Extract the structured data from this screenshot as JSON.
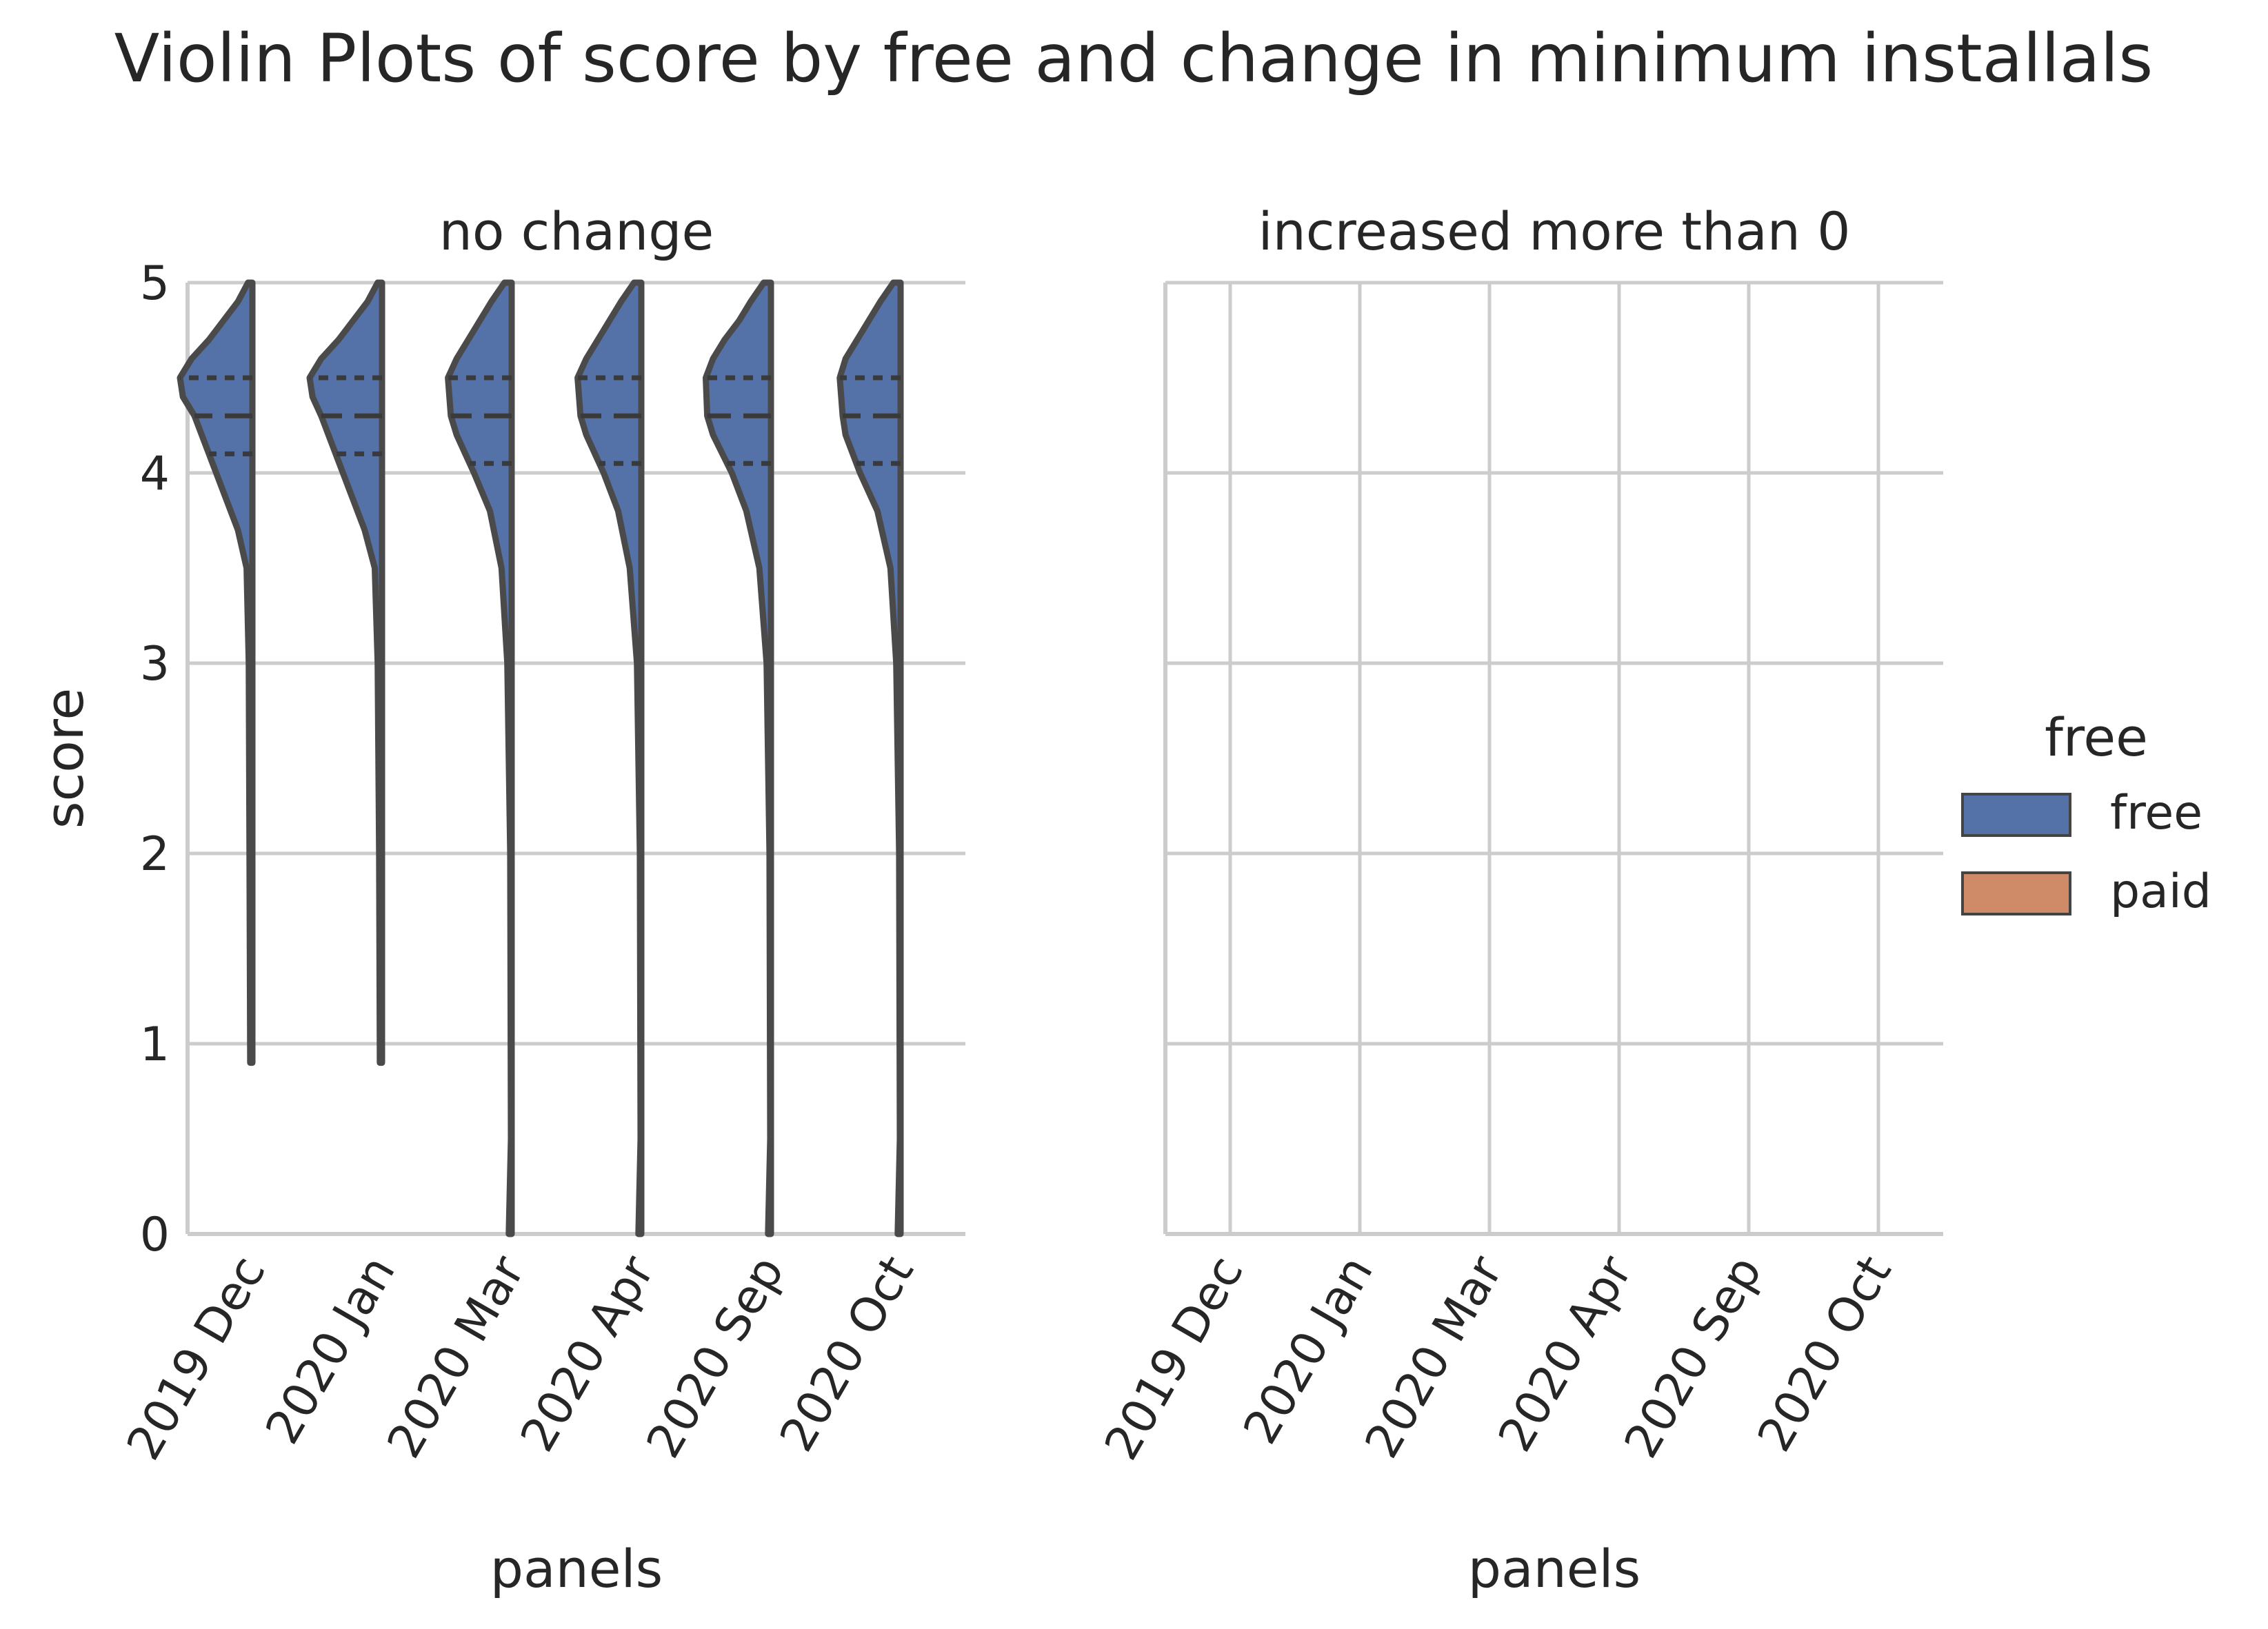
{
  "chart_data": {
    "type": "violin",
    "title": "Violin Plots of score by free and change in minimum installals",
    "split": true,
    "ylim": [
      0,
      5
    ],
    "yticks": [
      0,
      1,
      2,
      3,
      4,
      5
    ],
    "categories": [
      "2019 Dec",
      "2020 Jan",
      "2020 Mar",
      "2020 Apr",
      "2020 Sep",
      "2020 Oct"
    ],
    "grid": true,
    "legend": {
      "title": "free",
      "placement": "right",
      "entries": [
        {
          "label": "free",
          "color": "#5471a8"
        },
        {
          "label": "paid",
          "color": "#cf8a68"
        }
      ]
    },
    "facets": [
      {
        "title": "no change",
        "xlabel": "panels",
        "ylabel": "score",
        "series": [
          {
            "name": "free",
            "color": "#5471a8",
            "violins": [
              {
                "category": "2019 Dec",
                "min": 0.9,
                "max": 5.0,
                "q1": 4.1,
                "median": 4.3,
                "q3": 4.5,
                "profile": [
                  [
                    0.9,
                    0.015
                  ],
                  [
                    2.0,
                    0.02
                  ],
                  [
                    3.0,
                    0.025
                  ],
                  [
                    3.5,
                    0.04
                  ],
                  [
                    3.7,
                    0.1
                  ],
                  [
                    3.9,
                    0.2
                  ],
                  [
                    4.1,
                    0.3
                  ],
                  [
                    4.3,
                    0.4
                  ],
                  [
                    4.4,
                    0.48
                  ],
                  [
                    4.5,
                    0.5
                  ],
                  [
                    4.6,
                    0.42
                  ],
                  [
                    4.7,
                    0.3
                  ],
                  [
                    4.8,
                    0.2
                  ],
                  [
                    4.9,
                    0.1
                  ],
                  [
                    5.0,
                    0.03
                  ]
                ]
              },
              {
                "category": "2020 Jan",
                "min": 0.9,
                "max": 5.0,
                "q1": 4.1,
                "median": 4.3,
                "q3": 4.5,
                "profile": [
                  [
                    0.9,
                    0.015
                  ],
                  [
                    2.0,
                    0.02
                  ],
                  [
                    3.0,
                    0.03
                  ],
                  [
                    3.5,
                    0.05
                  ],
                  [
                    3.7,
                    0.12
                  ],
                  [
                    3.9,
                    0.22
                  ],
                  [
                    4.1,
                    0.32
                  ],
                  [
                    4.3,
                    0.42
                  ],
                  [
                    4.4,
                    0.48
                  ],
                  [
                    4.5,
                    0.5
                  ],
                  [
                    4.6,
                    0.42
                  ],
                  [
                    4.7,
                    0.3
                  ],
                  [
                    4.8,
                    0.2
                  ],
                  [
                    4.9,
                    0.1
                  ],
                  [
                    5.0,
                    0.03
                  ]
                ]
              },
              {
                "category": "2020 Mar",
                "min": 0.0,
                "max": 5.0,
                "q1": 4.05,
                "median": 4.3,
                "q3": 4.5,
                "profile": [
                  [
                    0.0,
                    0.02
                  ],
                  [
                    0.5,
                    0.005
                  ],
                  [
                    2.0,
                    0.01
                  ],
                  [
                    3.0,
                    0.03
                  ],
                  [
                    3.5,
                    0.07
                  ],
                  [
                    3.8,
                    0.15
                  ],
                  [
                    4.0,
                    0.26
                  ],
                  [
                    4.2,
                    0.38
                  ],
                  [
                    4.3,
                    0.42
                  ],
                  [
                    4.5,
                    0.44
                  ],
                  [
                    4.6,
                    0.38
                  ],
                  [
                    4.7,
                    0.3
                  ],
                  [
                    4.8,
                    0.22
                  ],
                  [
                    4.9,
                    0.14
                  ],
                  [
                    5.0,
                    0.05
                  ]
                ]
              },
              {
                "category": "2020 Apr",
                "min": 0.0,
                "max": 5.0,
                "q1": 4.05,
                "median": 4.3,
                "q3": 4.5,
                "profile": [
                  [
                    0.0,
                    0.02
                  ],
                  [
                    0.5,
                    0.005
                  ],
                  [
                    2.0,
                    0.01
                  ],
                  [
                    3.0,
                    0.03
                  ],
                  [
                    3.5,
                    0.08
                  ],
                  [
                    3.8,
                    0.16
                  ],
                  [
                    4.0,
                    0.26
                  ],
                  [
                    4.2,
                    0.38
                  ],
                  [
                    4.3,
                    0.42
                  ],
                  [
                    4.5,
                    0.44
                  ],
                  [
                    4.6,
                    0.38
                  ],
                  [
                    4.7,
                    0.3
                  ],
                  [
                    4.8,
                    0.22
                  ],
                  [
                    4.9,
                    0.14
                  ],
                  [
                    5.0,
                    0.05
                  ]
                ]
              },
              {
                "category": "2020 Sep",
                "min": 0.0,
                "max": 5.0,
                "q1": 4.05,
                "median": 4.3,
                "q3": 4.5,
                "profile": [
                  [
                    0.0,
                    0.02
                  ],
                  [
                    0.5,
                    0.005
                  ],
                  [
                    2.0,
                    0.01
                  ],
                  [
                    3.0,
                    0.03
                  ],
                  [
                    3.5,
                    0.08
                  ],
                  [
                    3.8,
                    0.17
                  ],
                  [
                    4.0,
                    0.27
                  ],
                  [
                    4.2,
                    0.4
                  ],
                  [
                    4.3,
                    0.44
                  ],
                  [
                    4.5,
                    0.45
                  ],
                  [
                    4.6,
                    0.4
                  ],
                  [
                    4.7,
                    0.32
                  ],
                  [
                    4.8,
                    0.22
                  ],
                  [
                    4.9,
                    0.14
                  ],
                  [
                    5.0,
                    0.05
                  ]
                ]
              },
              {
                "category": "2020 Oct",
                "min": 0.0,
                "max": 5.0,
                "q1": 4.05,
                "median": 4.3,
                "q3": 4.5,
                "profile": [
                  [
                    0.0,
                    0.02
                  ],
                  [
                    0.5,
                    0.005
                  ],
                  [
                    2.0,
                    0.01
                  ],
                  [
                    3.0,
                    0.03
                  ],
                  [
                    3.5,
                    0.07
                  ],
                  [
                    3.8,
                    0.16
                  ],
                  [
                    4.0,
                    0.28
                  ],
                  [
                    4.2,
                    0.38
                  ],
                  [
                    4.3,
                    0.4
                  ],
                  [
                    4.5,
                    0.42
                  ],
                  [
                    4.6,
                    0.38
                  ],
                  [
                    4.7,
                    0.3
                  ],
                  [
                    4.8,
                    0.22
                  ],
                  [
                    4.9,
                    0.14
                  ],
                  [
                    5.0,
                    0.05
                  ]
                ]
              }
            ]
          },
          {
            "name": "paid",
            "color": "#cf8a68",
            "violins": []
          }
        ]
      },
      {
        "title": "increased more than 0",
        "xlabel": "panels",
        "ylabel": "",
        "series": [
          {
            "name": "free",
            "color": "#5471a8",
            "violins": []
          },
          {
            "name": "paid",
            "color": "#cf8a68",
            "violins": []
          }
        ]
      }
    ]
  }
}
